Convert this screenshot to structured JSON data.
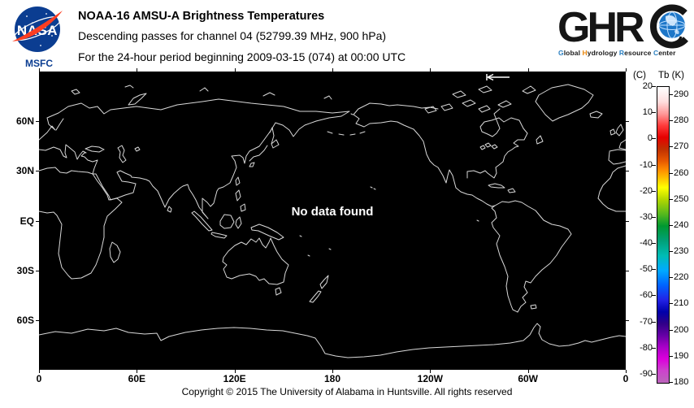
{
  "header": {
    "nasa": {
      "logo_text": "NASA",
      "center_label": "MSFC"
    },
    "title_lines": [
      "NOAA-16 AMSU-A Brightness Temperatures",
      "Descending passes for channel 04 (52799.39 MHz, 900 hPa)",
      "For the 24-hour period beginning 2009-03-15 (074) at 00:00 UTC"
    ],
    "ghrc": {
      "logo_text": "GHRC",
      "subtitle_parts": [
        {
          "text": "G",
          "color": "#2a7fc1"
        },
        {
          "text": "lobal ",
          "color": "#1a1a1a"
        },
        {
          "text": "H",
          "color": "#e8870e"
        },
        {
          "text": "ydrology ",
          "color": "#1a1a1a"
        },
        {
          "text": "R",
          "color": "#2a7fc1"
        },
        {
          "text": "esource ",
          "color": "#1a1a1a"
        },
        {
          "text": "C",
          "color": "#2a7fc1"
        },
        {
          "text": "enter",
          "color": "#1a1a1a"
        }
      ]
    }
  },
  "map": {
    "no_data_text": "No data found",
    "background": "#000000",
    "coastline_color": "#d9d9d9",
    "lat_ticks": [
      {
        "label": "60N",
        "lat": 60
      },
      {
        "label": "30N",
        "lat": 30
      },
      {
        "label": "EQ",
        "lat": 0
      },
      {
        "label": "30S",
        "lat": -30
      },
      {
        "label": "60S",
        "lat": -60
      }
    ],
    "lon_ticks": [
      {
        "label": "0"
      },
      {
        "label": "60E"
      },
      {
        "label": "120E"
      },
      {
        "label": "180"
      },
      {
        "label": "120W"
      },
      {
        "label": "60W"
      },
      {
        "label": "0"
      }
    ]
  },
  "colorbar": {
    "unit_celsius": "(C)",
    "unit_kelvin": "Tb  (K)",
    "c_ticks": [
      20,
      10,
      0,
      -10,
      -20,
      -30,
      -40,
      -50,
      -60,
      -70,
      -80,
      -90
    ],
    "k_ticks": [
      290,
      280,
      270,
      260,
      250,
      240,
      230,
      220,
      210,
      200,
      190,
      180
    ],
    "gradient_stops": [
      [
        0,
        "#ffffff"
      ],
      [
        5,
        "#ffdede"
      ],
      [
        9,
        "#ff9a9a"
      ],
      [
        13,
        "#ff3c3c"
      ],
      [
        17,
        "#e60000"
      ],
      [
        21,
        "#c03000"
      ],
      [
        25,
        "#e85800"
      ],
      [
        28,
        "#ff8c00"
      ],
      [
        31,
        "#ffc400"
      ],
      [
        34,
        "#ffff00"
      ],
      [
        38,
        "#b4d700"
      ],
      [
        43,
        "#55b81e"
      ],
      [
        47,
        "#009830"
      ],
      [
        52,
        "#00a078"
      ],
      [
        57,
        "#00bcb4"
      ],
      [
        62,
        "#00aaff"
      ],
      [
        67,
        "#0064ff"
      ],
      [
        72,
        "#2222e6"
      ],
      [
        76,
        "#0000aa"
      ],
      [
        80,
        "#300088"
      ],
      [
        84,
        "#6600a6"
      ],
      [
        88,
        "#aa00c8"
      ],
      [
        92,
        "#dc00dc"
      ],
      [
        96,
        "#cc44cc"
      ],
      [
        100,
        "#bb66bb"
      ]
    ]
  },
  "footer": {
    "copyright": "Copyright © 2015 The University of Alabama in Huntsville.  All rights reserved"
  }
}
